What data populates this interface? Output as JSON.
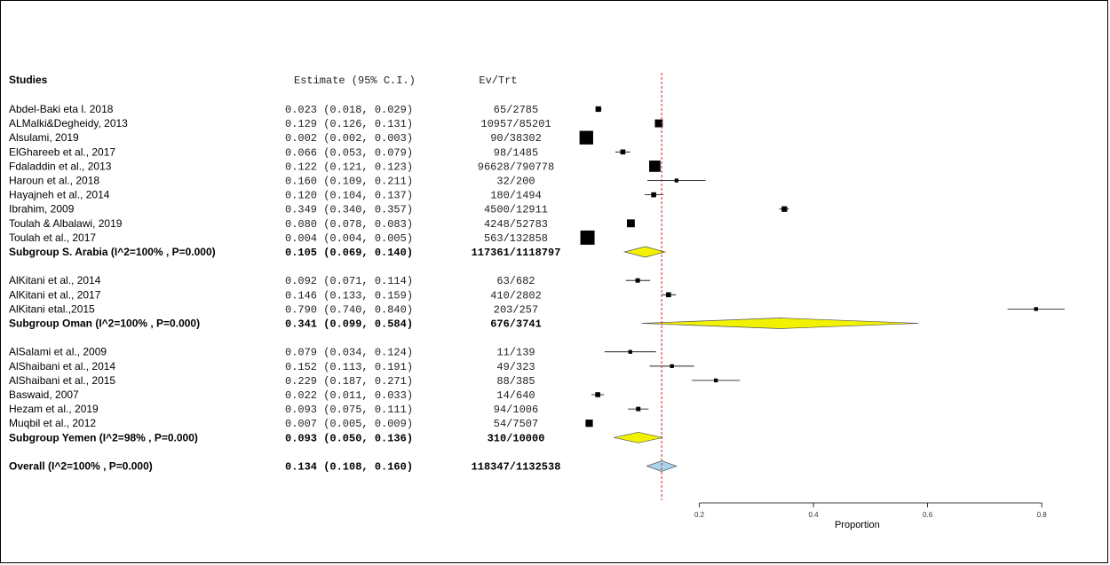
{
  "chart_data": {
    "type": "forest",
    "headers": {
      "studies": "Studies",
      "estimate": "Estimate (95% C.I.)",
      "events": "Ev/Trt"
    },
    "xlabel": "Proportion",
    "x_ticks": [
      "0.2",
      "0.4",
      "0.6",
      "0.8"
    ],
    "x_tick_values": [
      0.2,
      0.4,
      0.6,
      0.8
    ],
    "xlim": [
      0.0,
      0.82
    ],
    "reference_line": 0.134,
    "rows": [
      {
        "kind": "study",
        "label": "Abdel-Baki eta l. 2018",
        "est": 0.023,
        "lo": 0.018,
        "hi": 0.029,
        "est_text": "0.023 (0.018, 0.029)",
        "ev_trt": "65/2785",
        "weight": 0.25
      },
      {
        "kind": "study",
        "label": "ALMalki&Degheidy, 2013",
        "est": 0.129,
        "lo": 0.126,
        "hi": 0.131,
        "est_text": "0.129 (0.126, 0.131)",
        "ev_trt": "10957/85201",
        "weight": 0.45
      },
      {
        "kind": "study",
        "label": "Alsulami, 2019",
        "est": 0.002,
        "lo": 0.002,
        "hi": 0.003,
        "est_text": "0.002 (0.002, 0.003)",
        "ev_trt": "90/38302",
        "weight": 0.95
      },
      {
        "kind": "study",
        "label": "ElGhareeb et al., 2017",
        "est": 0.066,
        "lo": 0.053,
        "hi": 0.079,
        "est_text": "0.066 (0.053, 0.079)",
        "ev_trt": "98/1485",
        "weight": 0.2
      },
      {
        "kind": "study",
        "label": "Fdaladdin et al., 2013",
        "est": 0.122,
        "lo": 0.121,
        "hi": 0.123,
        "est_text": "0.122 (0.121, 0.123)",
        "ev_trt": "96628/790778",
        "weight": 0.75
      },
      {
        "kind": "study",
        "label": "Haroun et al., 2018",
        "est": 0.16,
        "lo": 0.109,
        "hi": 0.211,
        "est_text": "0.160 (0.109, 0.211)",
        "ev_trt": "32/200",
        "weight": 0.1
      },
      {
        "kind": "study",
        "label": "Hayajneh et al., 2014",
        "est": 0.12,
        "lo": 0.104,
        "hi": 0.137,
        "est_text": "0.120 (0.104, 0.137)",
        "ev_trt": "180/1494",
        "weight": 0.2
      },
      {
        "kind": "study",
        "label": "Ibrahim, 2009",
        "est": 0.349,
        "lo": 0.34,
        "hi": 0.357,
        "est_text": "0.349 (0.340, 0.357)",
        "ev_trt": "4500/12911",
        "weight": 0.25
      },
      {
        "kind": "study",
        "label": "Toulah & Albalawi, 2019",
        "est": 0.08,
        "lo": 0.078,
        "hi": 0.083,
        "est_text": "0.080 (0.078, 0.083)",
        "ev_trt": "4248/52783",
        "weight": 0.45
      },
      {
        "kind": "study",
        "label": "Toulah et al., 2017",
        "est": 0.004,
        "lo": 0.004,
        "hi": 0.005,
        "est_text": "0.004 (0.004, 0.005)",
        "ev_trt": "563/132858",
        "weight": 1.0
      },
      {
        "kind": "subgroup",
        "label": "Subgroup S. Arabia (I^2=100% , P=0.000)",
        "est": 0.105,
        "lo": 0.069,
        "hi": 0.14,
        "est_text": "0.105 (0.069, 0.140)",
        "ev_trt": "117361/1118797",
        "color": "#f2f200"
      },
      {
        "kind": "blank"
      },
      {
        "kind": "study",
        "label": "AlKitani et al., 2014",
        "est": 0.092,
        "lo": 0.071,
        "hi": 0.114,
        "est_text": "0.092 (0.071, 0.114)",
        "ev_trt": "63/682",
        "weight": 0.15
      },
      {
        "kind": "study",
        "label": "AlKitani et al., 2017",
        "est": 0.146,
        "lo": 0.133,
        "hi": 0.159,
        "est_text": "0.146 (0.133, 0.159)",
        "ev_trt": "410/2802",
        "weight": 0.2
      },
      {
        "kind": "study",
        "label": "AlKitani etal.,2015",
        "est": 0.79,
        "lo": 0.74,
        "hi": 0.84,
        "est_text": "0.790 (0.740, 0.840)",
        "ev_trt": "203/257",
        "weight": 0.1
      },
      {
        "kind": "subgroup",
        "label": "Subgroup Oman (I^2=100% , P=0.000)",
        "est": 0.341,
        "lo": 0.099,
        "hi": 0.584,
        "est_text": "0.341 (0.099, 0.584)",
        "ev_trt": "676/3741",
        "color": "#f2f200"
      },
      {
        "kind": "blank"
      },
      {
        "kind": "study",
        "label": "AlSalami et al., 2009",
        "est": 0.079,
        "lo": 0.034,
        "hi": 0.124,
        "est_text": "0.079 (0.034, 0.124)",
        "ev_trt": "11/139",
        "weight": 0.1
      },
      {
        "kind": "study",
        "label": "AlShaibani et al., 2014",
        "est": 0.152,
        "lo": 0.113,
        "hi": 0.191,
        "est_text": "0.152 (0.113, 0.191)",
        "ev_trt": "49/323",
        "weight": 0.1
      },
      {
        "kind": "study",
        "label": "AlShaibani et al., 2015",
        "est": 0.229,
        "lo": 0.187,
        "hi": 0.271,
        "est_text": "0.229 (0.187, 0.271)",
        "ev_trt": "88/385",
        "weight": 0.1
      },
      {
        "kind": "study",
        "label": "Baswaid, 2007",
        "est": 0.022,
        "lo": 0.011,
        "hi": 0.033,
        "est_text": "0.022 (0.011, 0.033)",
        "ev_trt": "14/640",
        "weight": 0.2
      },
      {
        "kind": "study",
        "label": "Hezam et al., 2019",
        "est": 0.093,
        "lo": 0.075,
        "hi": 0.111,
        "est_text": "0.093 (0.075, 0.111)",
        "ev_trt": "94/1006",
        "weight": 0.15
      },
      {
        "kind": "study",
        "label": "Muqbil et al., 2012",
        "est": 0.007,
        "lo": 0.005,
        "hi": 0.009,
        "est_text": "0.007 (0.005, 0.009)",
        "ev_trt": "54/7507",
        "weight": 0.4
      },
      {
        "kind": "subgroup",
        "label": "Subgroup Yemen (I^2=98% , P=0.000)",
        "est": 0.093,
        "lo": 0.05,
        "hi": 0.136,
        "est_text": "0.093 (0.050, 0.136)",
        "ev_trt": "310/10000",
        "color": "#f2f200"
      },
      {
        "kind": "blank"
      },
      {
        "kind": "overall",
        "label": "Overall (I^2=100% , P=0.000)",
        "est": 0.134,
        "lo": 0.108,
        "hi": 0.16,
        "est_text": "0.134 (0.108, 0.160)",
        "ev_trt": "118347/1132538",
        "color": "#a9d4ee"
      }
    ]
  }
}
